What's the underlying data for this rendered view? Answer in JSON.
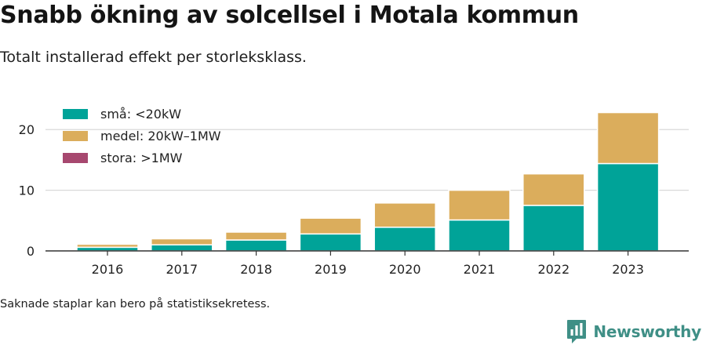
{
  "title": "Snabb ökning av solcellsel i Motala kommun",
  "subtitle": "Totalt installerad effekt per storleksklass.",
  "note": "Saknade staplar kan bero på statistiksekretess.",
  "brand": {
    "name": "Newsworthy",
    "icon": "newsworthy-logo-icon"
  },
  "colors": {
    "sma": "#00a398",
    "medel": "#dbad5c",
    "stora": "#a7486f",
    "grid": "#d9d9d9",
    "axis": "#333333"
  },
  "chart_data": {
    "type": "bar",
    "stacked": true,
    "categories": [
      "2016",
      "2017",
      "2018",
      "2019",
      "2020",
      "2021",
      "2022",
      "2023"
    ],
    "series": [
      {
        "name": "små: <20kW",
        "color": "#00a398",
        "values": [
          0.6,
          1.0,
          1.8,
          2.8,
          3.9,
          5.1,
          7.5,
          14.4
        ]
      },
      {
        "name": "medel: 20kW–1MW",
        "color": "#dbad5c",
        "values": [
          0.5,
          1.0,
          1.3,
          2.6,
          4.0,
          4.9,
          5.2,
          8.4
        ]
      },
      {
        "name": "stora: >1MW",
        "color": "#a7486f",
        "values": [
          0,
          0,
          0,
          0,
          0,
          0,
          0,
          0
        ]
      }
    ],
    "yticks": [
      0,
      10,
      20
    ],
    "ylim": [
      0,
      23
    ],
    "xlabel": "",
    "ylabel": "",
    "grid": true,
    "legend_position": "top-left"
  }
}
